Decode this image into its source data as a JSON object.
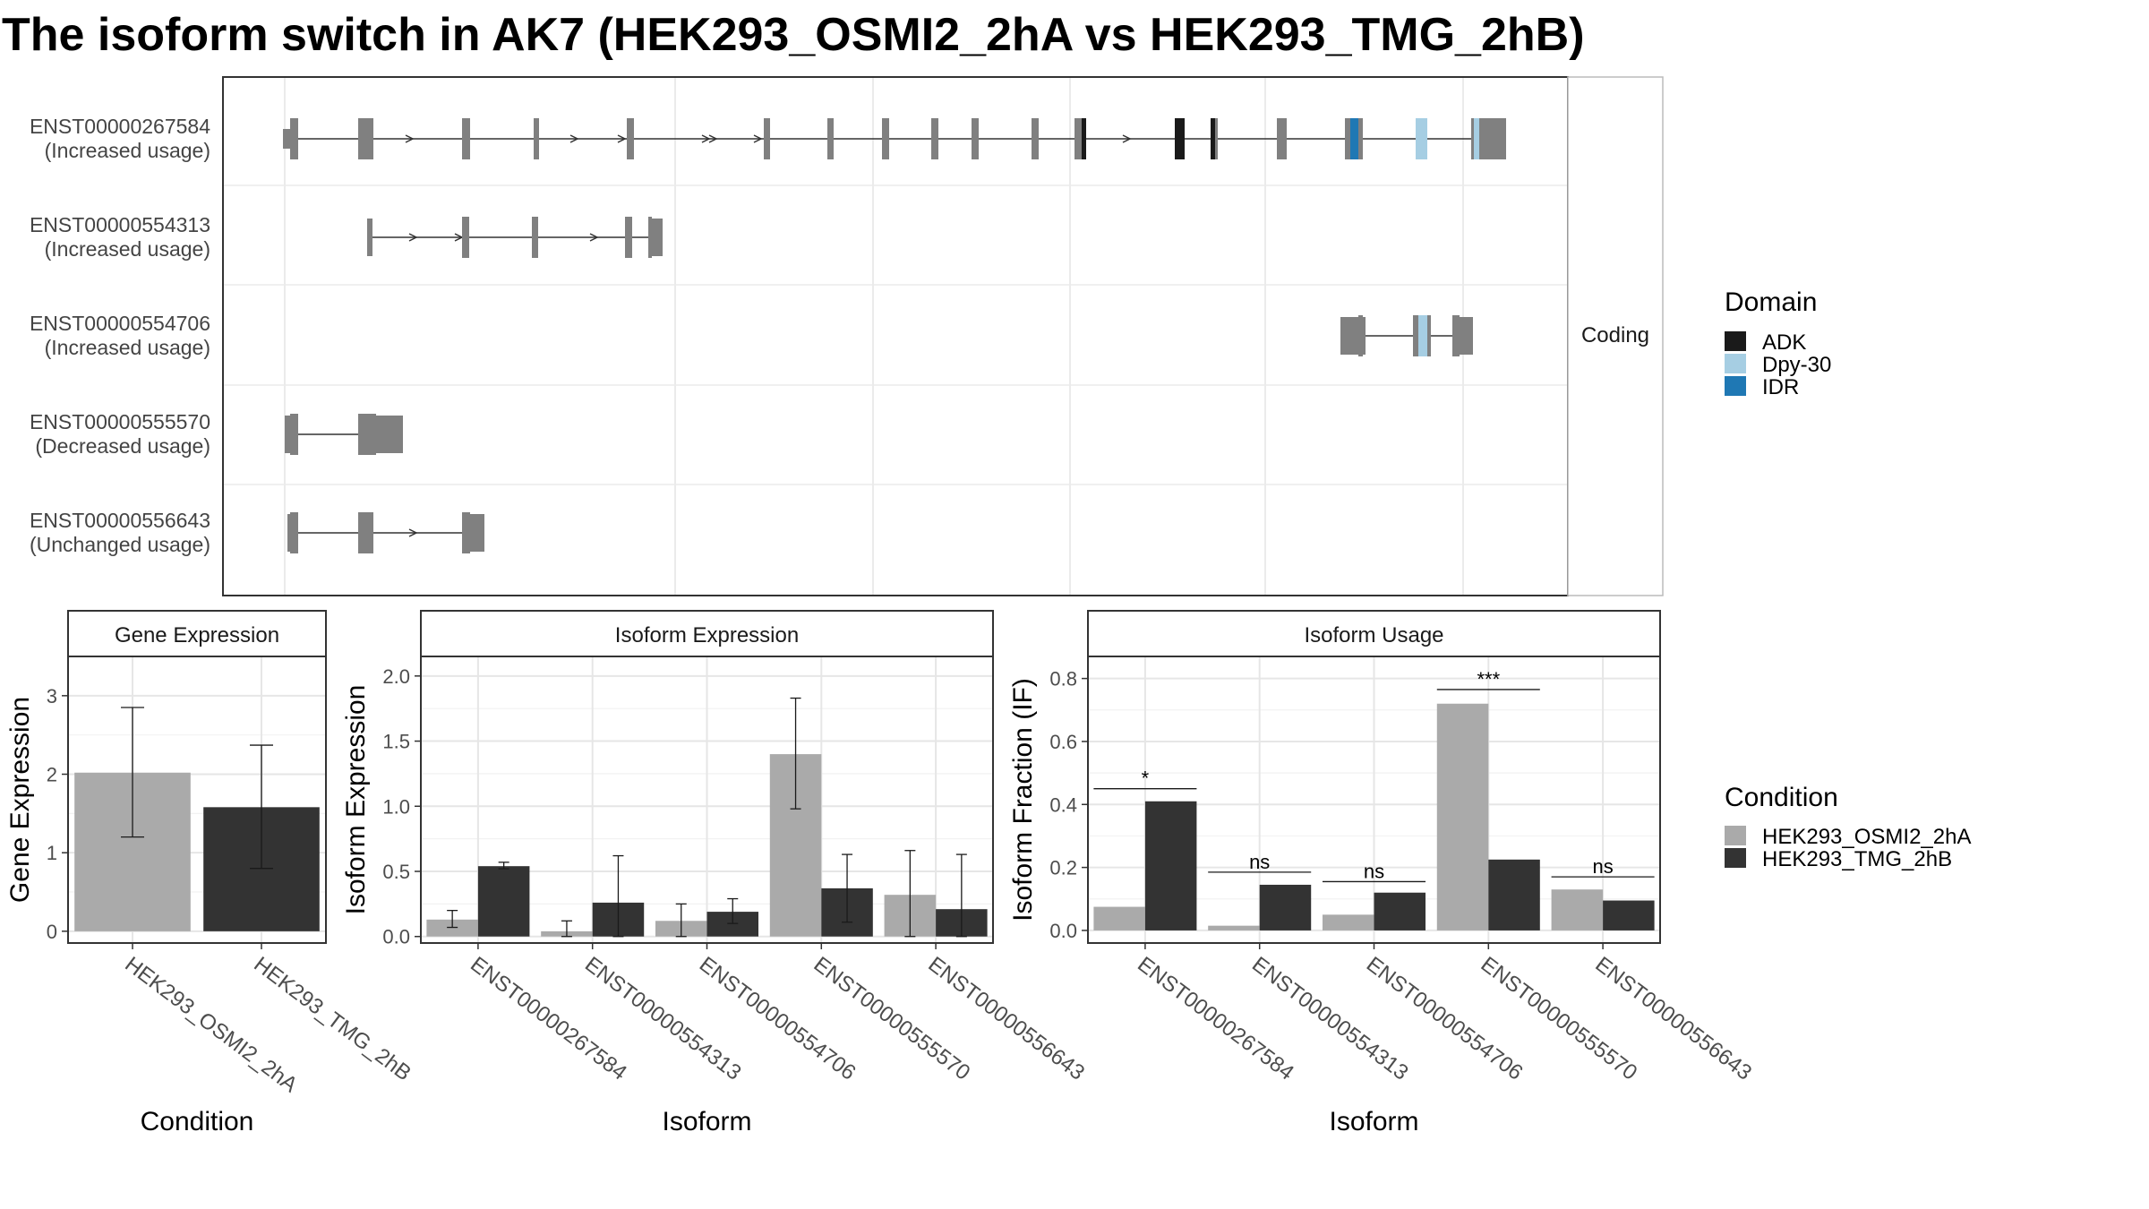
{
  "title": "The isoform switch in AK7 (HEK293_OSMI2_2hA vs HEK293_TMG_2hB)",
  "colors": {
    "ADK": "#1a1a1a",
    "Dpy-30": "#a6cee3",
    "IDR": "#1f78b4",
    "HEK293_OSMI2_2hA": "#aaaaaa",
    "HEK293_TMG_2hB": "#333333",
    "exon": "#808080"
  },
  "structure": {
    "strip_label": "Coding",
    "isoforms": [
      {
        "id": "ENST00000267584",
        "label1": "ENST00000267584",
        "label2": "(Increased usage)"
      },
      {
        "id": "ENST00000554313",
        "label1": "ENST00000554313",
        "label2": "(Increased usage)"
      },
      {
        "id": "ENST00000554706",
        "label1": "ENST00000554706",
        "label2": "(Increased usage)"
      },
      {
        "id": "ENST00000555570",
        "label1": "ENST00000555570",
        "label2": "(Decreased usage)"
      },
      {
        "id": "ENST00000556643",
        "label1": "ENST00000556643",
        "label2": "(Unchanged usage)"
      }
    ]
  },
  "legends": {
    "domain": {
      "title": "Domain",
      "items": [
        "ADK",
        "Dpy-30",
        "IDR"
      ]
    },
    "condition": {
      "title": "Condition",
      "items": [
        "HEK293_OSMI2_2hA",
        "HEK293_TMG_2hB"
      ]
    }
  },
  "chart_data": [
    {
      "type": "bar",
      "panel_title": "Gene Expression",
      "xlabel": "Condition",
      "ylabel": "Gene Expression",
      "categories": [
        "HEK293_OSMI2_2hA",
        "HEK293_TMG_2hB"
      ],
      "values": [
        2.02,
        1.58
      ],
      "error_low": [
        1.2,
        0.8
      ],
      "error_high": [
        2.85,
        2.37
      ],
      "ylim": [
        -0.15,
        3.5
      ],
      "yticks": [
        "0",
        "1",
        "2",
        "3"
      ]
    },
    {
      "type": "bar",
      "panel_title": "Isoform Expression",
      "xlabel": "Isoform",
      "ylabel": "Isoform Expression",
      "categories": [
        "ENST00000267584",
        "ENST00000554313",
        "ENST00000554706",
        "ENST00000555570",
        "ENST00000556643"
      ],
      "series": [
        {
          "name": "HEK293_OSMI2_2hA",
          "values": [
            0.13,
            0.04,
            0.12,
            1.4,
            0.32
          ],
          "error_low": [
            0.07,
            0.0,
            0.0,
            0.98,
            0.0
          ],
          "error_high": [
            0.2,
            0.12,
            0.25,
            1.83,
            0.66
          ]
        },
        {
          "name": "HEK293_TMG_2hB",
          "values": [
            0.54,
            0.26,
            0.19,
            0.37,
            0.21
          ],
          "error_low": [
            0.52,
            0.0,
            0.1,
            0.11,
            0.0
          ],
          "error_high": [
            0.57,
            0.62,
            0.29,
            0.63,
            0.63
          ]
        }
      ],
      "ylim": [
        -0.05,
        2.15
      ],
      "yticks": [
        "0.0",
        "0.5",
        "1.0",
        "1.5",
        "2.0"
      ]
    },
    {
      "type": "bar",
      "panel_title": "Isoform Usage",
      "xlabel": "Isoform",
      "ylabel": "Isoform Fraction (IF)",
      "categories": [
        "ENST00000267584",
        "ENST00000554313",
        "ENST00000554706",
        "ENST00000555570",
        "ENST00000556643"
      ],
      "series": [
        {
          "name": "HEK293_OSMI2_2hA",
          "values": [
            0.075,
            0.015,
            0.05,
            0.72,
            0.13
          ]
        },
        {
          "name": "HEK293_TMG_2hB",
          "values": [
            0.41,
            0.145,
            0.12,
            0.225,
            0.095
          ]
        }
      ],
      "significance": [
        "*",
        "ns",
        "ns",
        "***",
        "ns"
      ],
      "significance_y": [
        0.45,
        0.185,
        0.155,
        0.765,
        0.17
      ],
      "ylim": [
        -0.04,
        0.87
      ],
      "yticks": [
        "0.0",
        "0.2",
        "0.4",
        "0.6",
        "0.8"
      ]
    }
  ]
}
